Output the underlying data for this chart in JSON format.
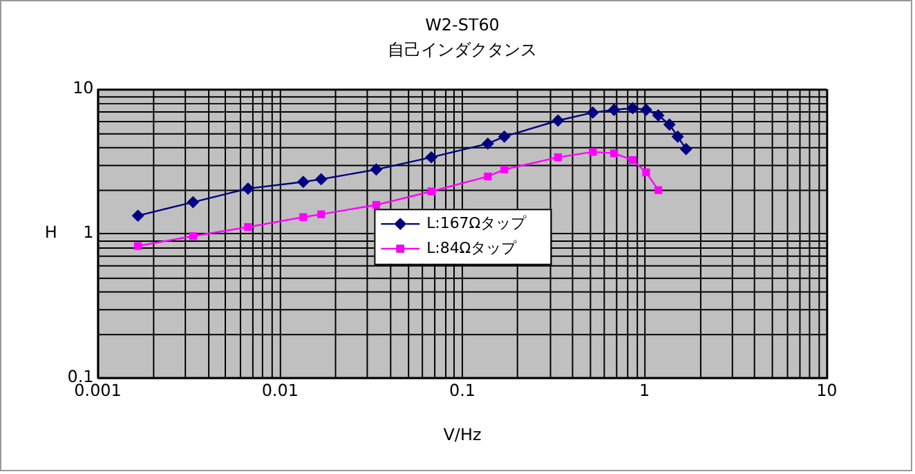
{
  "chart_data": {
    "type": "line",
    "title": "W2-ST60",
    "subtitle": "自己インダクタンス",
    "xlabel": "V/Hz",
    "ylabel": "H",
    "log": "xy",
    "grid": true,
    "legend": "center",
    "line_style": "solid",
    "xlim": [
      0.001,
      10
    ],
    "xticks": [
      0.001,
      0.01,
      0.1,
      1,
      10
    ],
    "ylim": [
      0.1,
      10
    ],
    "yticks": [
      0.1,
      1,
      10
    ],
    "series": [
      {
        "name": "L:167Ωタップ",
        "color": "#000080",
        "marker": "diamond",
        "x": [
          0.00166,
          0.00333,
          0.00667,
          0.0134,
          0.0168,
          0.0337,
          0.0676,
          0.138,
          0.17,
          0.335,
          0.52,
          0.68,
          0.86,
          1.02,
          1.19,
          1.37,
          1.52,
          1.69
        ],
        "values": [
          1.33,
          1.65,
          2.05,
          2.28,
          2.38,
          2.78,
          3.38,
          4.2,
          4.7,
          6.07,
          6.9,
          7.2,
          7.4,
          7.2,
          6.6,
          5.7,
          4.7,
          3.85
        ]
      },
      {
        "name": "L:84Ωタップ",
        "color": "#ff00ff",
        "marker": "square",
        "x": [
          0.00166,
          0.00333,
          0.00667,
          0.0134,
          0.0168,
          0.0337,
          0.0676,
          0.138,
          0.17,
          0.335,
          0.52,
          0.68,
          0.86,
          1.02,
          1.19
        ],
        "values": [
          0.82,
          0.96,
          1.11,
          1.3,
          1.36,
          1.58,
          1.96,
          2.49,
          2.78,
          3.38,
          3.68,
          3.6,
          3.23,
          2.66,
          2.0
        ]
      }
    ]
  }
}
